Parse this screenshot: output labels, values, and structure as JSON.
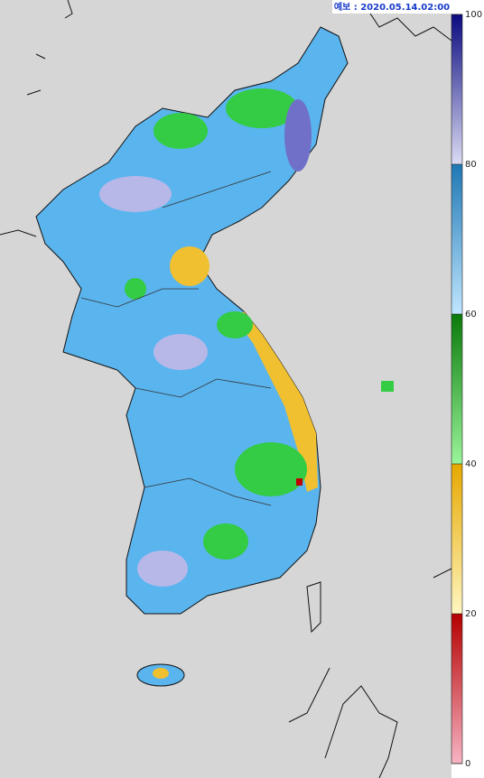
{
  "header": {
    "forecast_label": "예보 : 2020.05.14.02:00"
  },
  "legend": {
    "ticks": [
      0,
      20,
      40,
      60,
      80,
      100
    ],
    "colors": [
      [
        "#f7b4c4",
        "#b40000"
      ],
      [
        "#fff6c0",
        "#e6a800"
      ],
      [
        "#9af59a",
        "#0a7a0a"
      ],
      [
        "#bfe6ff",
        "#1f78b4"
      ],
      [
        "#dcdcf4",
        "#0a0a80"
      ]
    ]
  }
}
